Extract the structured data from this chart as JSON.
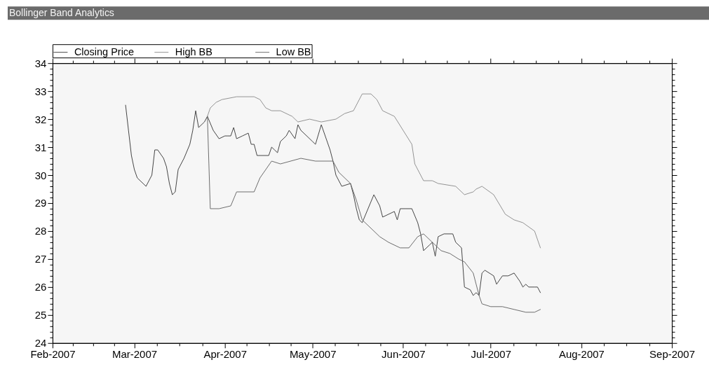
{
  "chart_data": {
    "type": "line",
    "title": "Bollinger Band Analytics",
    "legend": "top left",
    "xlim": [
      "2007-02",
      "2007-09"
    ],
    "ylim": [
      24,
      34
    ],
    "xticks": [
      {
        "value": "2007-02",
        "label": "Feb-2007"
      },
      {
        "value": "2007-02-08",
        "label": null
      },
      {
        "value": "2007-02-15",
        "label": null
      },
      {
        "value": "2007-02-22",
        "label": null
      },
      {
        "value": "2007-03",
        "label": "Mar-2007"
      },
      {
        "value": "2007-03-08T18:00",
        "label": null
      },
      {
        "value": "2007-03-16T12:00",
        "label": null
      },
      {
        "value": "2007-03-24T06:00",
        "label": null
      },
      {
        "value": "2007-04",
        "label": "Apr-2007"
      },
      {
        "value": "2007-04-08T12:00",
        "label": null
      },
      {
        "value": "2007-04-16",
        "label": null
      },
      {
        "value": "2007-04-23T12:00",
        "label": null
      },
      {
        "value": "2007-05",
        "label": "May-2007"
      },
      {
        "value": "2007-05-08T18:00",
        "label": null
      },
      {
        "value": "2007-05-16T12:00",
        "label": null
      },
      {
        "value": "2007-05-24T06:00",
        "label": null
      },
      {
        "value": "2007-06",
        "label": "Jun-2007"
      },
      {
        "value": "2007-06-08T12:00",
        "label": null
      },
      {
        "value": "2007-06-16",
        "label": null
      },
      {
        "value": "2007-06-23T12:00",
        "label": null
      },
      {
        "value": "2007-07",
        "label": "Jul-2007"
      },
      {
        "value": "2007-07-08T18:00",
        "label": null
      },
      {
        "value": "2007-07-16T12:00",
        "label": null
      },
      {
        "value": "2007-07-24T06:00",
        "label": null
      },
      {
        "value": "2007-08",
        "label": "Aug-2007"
      },
      {
        "value": "2007-08-08T18:00",
        "label": null
      },
      {
        "value": "2007-08-16T12:00",
        "label": null
      },
      {
        "value": "2007-08-24T06:00",
        "label": null
      },
      {
        "value": "2007-09",
        "label": "Sep-2007"
      }
    ],
    "yticks": [
      24,
      {
        "value": 24.2,
        "label": null
      },
      {
        "value": 24.4,
        "label": null
      },
      {
        "value": 24.6,
        "label": null
      },
      {
        "value": 24.8,
        "label": null
      },
      25,
      {
        "value": 25.2,
        "label": null
      },
      {
        "value": 25.4,
        "label": null
      },
      {
        "value": 25.6,
        "label": null
      },
      {
        "value": 25.8,
        "label": null
      },
      26,
      {
        "value": 26.2,
        "label": null
      },
      {
        "value": 26.4,
        "label": null
      },
      {
        "value": 26.6,
        "label": null
      },
      {
        "value": 26.8,
        "label": null
      },
      27,
      {
        "value": 27.2,
        "label": null
      },
      {
        "value": 27.4,
        "label": null
      },
      {
        "value": 27.6,
        "label": null
      },
      {
        "value": 27.8,
        "label": null
      },
      28,
      {
        "value": 28.2,
        "label": null
      },
      {
        "value": 28.4,
        "label": null
      },
      {
        "value": 28.6,
        "label": null
      },
      {
        "value": 28.8,
        "label": null
      },
      29,
      {
        "value": 29.2,
        "label": null
      },
      {
        "value": 29.4,
        "label": null
      },
      {
        "value": 29.6,
        "label": null
      },
      {
        "value": 29.8,
        "label": null
      },
      30,
      {
        "value": 30.2,
        "label": null
      },
      {
        "value": 30.4,
        "label": null
      },
      {
        "value": 30.6,
        "label": null
      },
      {
        "value": 30.8,
        "label": null
      },
      31,
      {
        "value": 31.2,
        "label": null
      },
      {
        "value": 31.4,
        "label": null
      },
      {
        "value": 31.6,
        "label": null
      },
      {
        "value": 31.8,
        "label": null
      },
      32,
      {
        "value": 32.2,
        "label": null
      },
      {
        "value": 32.4,
        "label": null
      },
      {
        "value": 32.6,
        "label": null
      },
      {
        "value": 32.8,
        "label": null
      },
      33,
      {
        "value": 33.2,
        "label": null
      },
      {
        "value": 33.4,
        "label": null
      },
      {
        "value": 33.6,
        "label": null
      },
      {
        "value": 33.8,
        "label": null
      },
      34
    ],
    "series": [
      {
        "name": "Closing Price",
        "color": "#454545",
        "x": [
          "2007-02-26",
          "2007-02-27",
          "2007-02-28",
          "2007-03-01",
          "2007-03-02",
          "2007-03-04",
          "2007-03-05",
          "2007-03-06",
          "2007-03-07",
          "2007-03-08",
          "2007-03-09",
          "2007-03-11",
          "2007-03-12",
          "2007-03-13",
          "2007-03-14",
          "2007-03-15",
          "2007-03-16",
          "2007-03-18",
          "2007-03-20",
          "2007-03-21",
          "2007-03-22",
          "2007-03-23",
          "2007-03-25",
          "2007-03-26",
          "2007-03-28",
          "2007-03-30",
          "2007-04-01",
          "2007-04-02",
          "2007-04-03",
          "2007-04-04",
          "2007-04-05",
          "2007-04-07",
          "2007-04-09",
          "2007-04-10",
          "2007-04-11",
          "2007-04-12",
          "2007-04-16",
          "2007-04-17",
          "2007-04-18",
          "2007-04-19",
          "2007-04-20",
          "2007-04-22",
          "2007-04-23",
          "2007-04-25",
          "2007-04-26",
          "2007-04-27",
          "2007-05-01",
          "2007-05-02",
          "2007-05-04",
          "2007-05-07",
          "2007-05-08",
          "2007-05-09",
          "2007-05-11",
          "2007-05-14",
          "2007-05-15",
          "2007-05-16",
          "2007-05-17",
          "2007-05-18",
          "2007-05-20",
          "2007-05-22",
          "2007-05-24",
          "2007-05-25",
          "2007-05-27",
          "2007-05-29",
          "2007-05-30",
          "2007-05-31",
          "2007-06-02",
          "2007-06-04",
          "2007-06-06",
          "2007-06-07",
          "2007-06-08",
          "2007-06-10",
          "2007-06-11",
          "2007-06-12",
          "2007-06-13",
          "2007-06-15",
          "2007-06-18",
          "2007-06-19",
          "2007-06-21",
          "2007-06-22",
          "2007-06-24",
          "2007-06-25",
          "2007-06-26",
          "2007-06-27",
          "2007-06-28",
          "2007-06-29",
          "2007-07-02",
          "2007-07-03",
          "2007-07-05",
          "2007-07-07",
          "2007-07-09",
          "2007-07-11",
          "2007-07-12",
          "2007-07-13",
          "2007-07-14",
          "2007-07-16",
          "2007-07-17",
          "2007-07-18"
        ],
        "values": [
          32.5,
          31.6,
          30.7,
          30.2,
          29.9,
          29.7,
          29.6,
          29.8,
          30.0,
          30.9,
          30.9,
          30.6,
          30.3,
          29.7,
          29.3,
          29.4,
          30.2,
          30.6,
          31.1,
          31.6,
          32.3,
          31.7,
          31.9,
          32.1,
          31.6,
          31.3,
          31.4,
          31.4,
          31.4,
          31.7,
          31.3,
          31.4,
          31.5,
          31.1,
          31.1,
          30.7,
          30.7,
          31.0,
          30.9,
          30.8,
          31.2,
          31.4,
          31.6,
          31.3,
          31.8,
          31.6,
          31.2,
          31.1,
          31.8,
          30.9,
          30.5,
          30.0,
          29.6,
          29.7,
          29.3,
          28.8,
          28.4,
          28.3,
          28.8,
          29.3,
          28.9,
          28.5,
          28.6,
          28.7,
          28.4,
          28.8,
          28.8,
          28.8,
          28.3,
          27.9,
          27.3,
          27.5,
          27.6,
          27.1,
          27.8,
          27.9,
          27.9,
          27.6,
          27.4,
          26.0,
          25.9,
          25.7,
          25.8,
          25.7,
          26.5,
          26.6,
          26.4,
          26.1,
          26.4,
          26.4,
          26.5,
          26.2,
          26.0,
          26.1,
          26.0,
          26.0,
          26.0,
          25.8
        ]
      },
      {
        "name": "High BB",
        "color": "#939393",
        "x": [
          "2007-03-26",
          "2007-03-27",
          "2007-03-29",
          "2007-03-31",
          "2007-04-05",
          "2007-04-11",
          "2007-04-13",
          "2007-04-15",
          "2007-04-17",
          "2007-04-20",
          "2007-04-24",
          "2007-04-26",
          "2007-04-30",
          "2007-05-04",
          "2007-05-09",
          "2007-05-12",
          "2007-05-15",
          "2007-05-18",
          "2007-05-21",
          "2007-05-23",
          "2007-05-25",
          "2007-05-29",
          "2007-06-01",
          "2007-06-04",
          "2007-06-05",
          "2007-06-08",
          "2007-06-11",
          "2007-06-13",
          "2007-06-19",
          "2007-06-22",
          "2007-06-25",
          "2007-06-26",
          "2007-06-28",
          "2007-07-02",
          "2007-07-06",
          "2007-07-09",
          "2007-07-12",
          "2007-07-16",
          "2007-07-18"
        ],
        "values": [
          32.1,
          32.4,
          32.6,
          32.7,
          32.8,
          32.8,
          32.7,
          32.4,
          32.3,
          32.3,
          32.1,
          31.9,
          32.0,
          31.9,
          32.0,
          32.2,
          32.3,
          32.9,
          32.9,
          32.7,
          32.3,
          32.1,
          31.6,
          31.1,
          30.4,
          29.8,
          29.8,
          29.7,
          29.6,
          29.3,
          29.4,
          29.5,
          29.6,
          29.3,
          28.6,
          28.4,
          28.3,
          28.0,
          27.4
        ]
      },
      {
        "name": "Low BB",
        "color": "#6c6c6c",
        "x": [
          "2007-03-26",
          "2007-03-27",
          "2007-03-30",
          "2007-04-03",
          "2007-04-05",
          "2007-04-11",
          "2007-04-13",
          "2007-04-17",
          "2007-04-20",
          "2007-04-27",
          "2007-05-02",
          "2007-05-08",
          "2007-05-10",
          "2007-05-14",
          "2007-05-16",
          "2007-05-18",
          "2007-05-21",
          "2007-05-24",
          "2007-05-27",
          "2007-05-31",
          "2007-06-03",
          "2007-06-06",
          "2007-06-08",
          "2007-06-11",
          "2007-06-14",
          "2007-06-17",
          "2007-06-20",
          "2007-06-22",
          "2007-06-25",
          "2007-06-26",
          "2007-06-27",
          "2007-06-28",
          "2007-07-01",
          "2007-07-05",
          "2007-07-09",
          "2007-07-13",
          "2007-07-16",
          "2007-07-18"
        ],
        "values": [
          32.1,
          28.8,
          28.8,
          28.9,
          29.4,
          29.4,
          29.9,
          30.5,
          30.4,
          30.6,
          30.5,
          30.5,
          30.1,
          29.7,
          29.1,
          28.4,
          28.1,
          27.8,
          27.6,
          27.4,
          27.4,
          27.8,
          27.9,
          27.6,
          27.3,
          27.2,
          27.0,
          26.9,
          26.5,
          26.1,
          25.7,
          25.4,
          25.3,
          25.3,
          25.2,
          25.1,
          25.1,
          25.2
        ]
      }
    ]
  }
}
